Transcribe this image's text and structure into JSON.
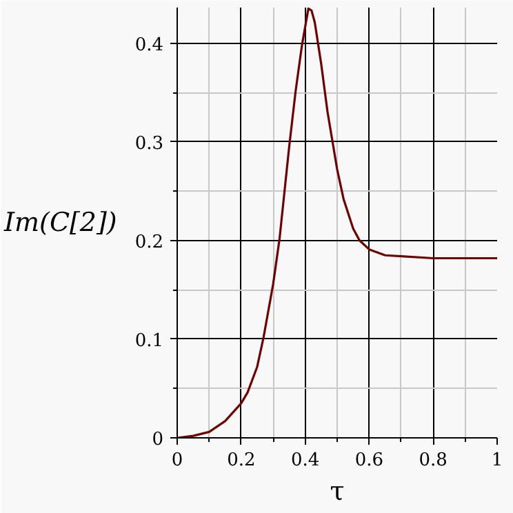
{
  "chart_data": {
    "type": "line",
    "xlabel": "τ",
    "ylabel": "Im(C[2])",
    "x": [
      0,
      0.05,
      0.1,
      0.15,
      0.2,
      0.22,
      0.25,
      0.27,
      0.3,
      0.32,
      0.35,
      0.37,
      0.39,
      0.41,
      0.42,
      0.43,
      0.45,
      0.47,
      0.5,
      0.52,
      0.55,
      0.57,
      0.6,
      0.65,
      0.7,
      0.8,
      0.9,
      1
    ],
    "series": [
      {
        "color": "#700000",
        "values": [
          0,
          0.002,
          0.006,
          0.017,
          0.035,
          0.046,
          0.072,
          0.102,
          0.156,
          0.202,
          0.295,
          0.351,
          0.398,
          0.435,
          0.433,
          0.421,
          0.379,
          0.33,
          0.272,
          0.242,
          0.212,
          0.2,
          0.191,
          0.185,
          0.184,
          0.182,
          0.182,
          0.182
        ]
      }
    ],
    "xlim": [
      0,
      1
    ],
    "ylim": [
      0,
      0.436
    ],
    "xticks": [
      0,
      0.2,
      0.4,
      0.6,
      0.8,
      1
    ],
    "yticks": [
      0,
      0.1,
      0.2,
      0.3,
      0.4
    ],
    "grid": true,
    "marker": "none",
    "line_style": "solid"
  }
}
